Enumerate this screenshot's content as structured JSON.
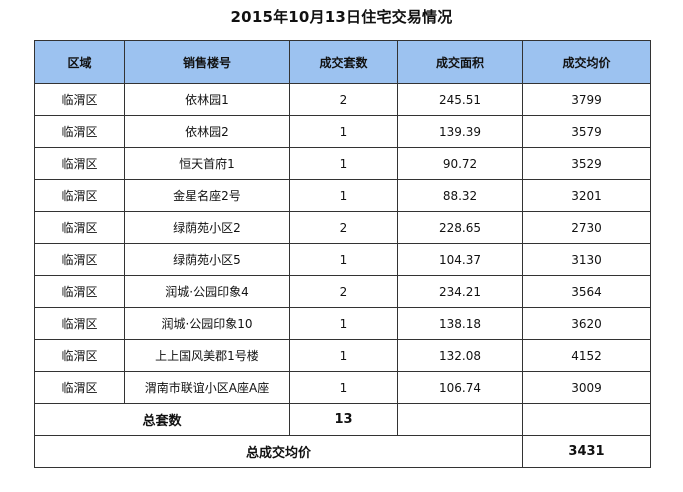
{
  "title": "2015年10月13日住宅交易情况",
  "table": {
    "headers": [
      "区域",
      "销售楼号",
      "成交套数",
      "成交面积",
      "成交均价"
    ],
    "rows": [
      [
        "临渭区",
        "依林园1",
        "2",
        "245.51",
        "3799"
      ],
      [
        "临渭区",
        "依林园2",
        "1",
        "139.39",
        "3579"
      ],
      [
        "临渭区",
        "恒天首府1",
        "1",
        "90.72",
        "3529"
      ],
      [
        "临渭区",
        "金星名座2号",
        "1",
        "88.32",
        "3201"
      ],
      [
        "临渭区",
        "绿荫苑小区2",
        "2",
        "228.65",
        "2730"
      ],
      [
        "临渭区",
        "绿荫苑小区5",
        "1",
        "104.37",
        "3130"
      ],
      [
        "临渭区",
        "润城·公园印象4",
        "2",
        "234.21",
        "3564"
      ],
      [
        "临渭区",
        "润城·公园印象10",
        "1",
        "138.18",
        "3620"
      ],
      [
        "临渭区",
        "上上国风美郡1号楼",
        "1",
        "132.08",
        "4152"
      ],
      [
        "临渭区",
        "渭南市联谊小区A座A座",
        "1",
        "106.74",
        "3009"
      ]
    ],
    "total_count_label": "总套数",
    "total_count_value": "13",
    "avg_price_label": "总成交均价",
    "avg_price_value": "3431"
  }
}
